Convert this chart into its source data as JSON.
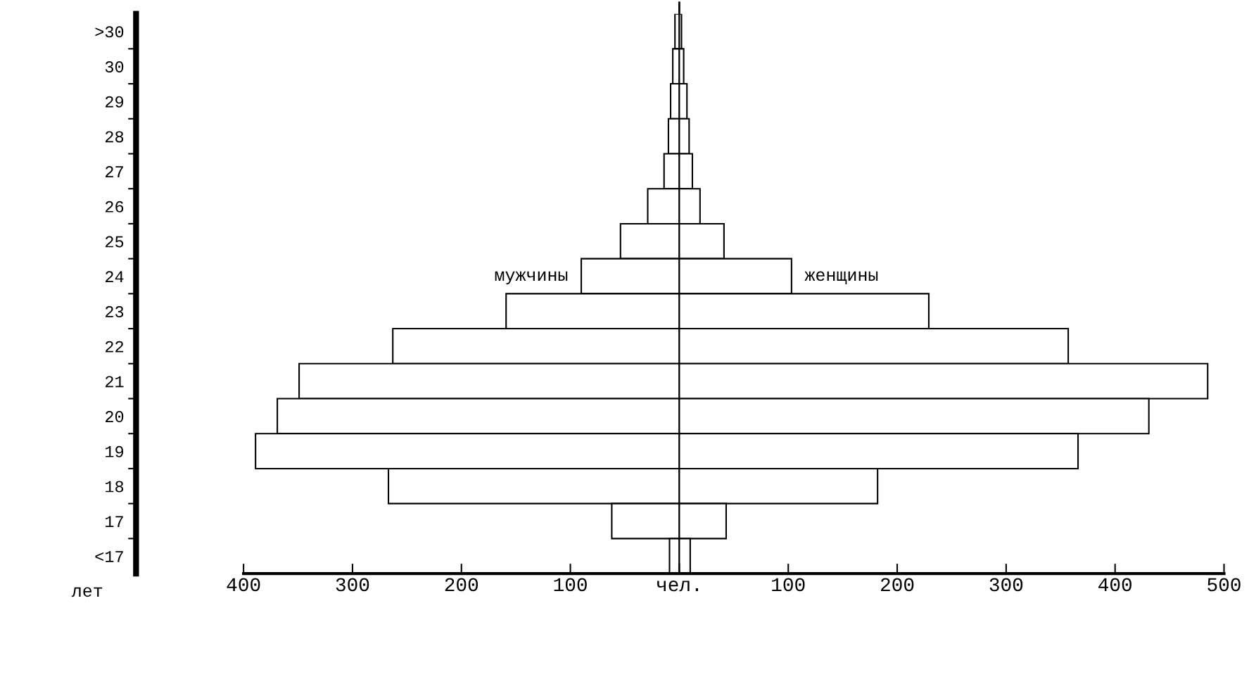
{
  "chart_data": {
    "type": "bar",
    "orientation": "horizontal",
    "stacked": true,
    "categories": [
      ">30",
      "30",
      "29",
      "28",
      "27",
      "26",
      "25",
      "24",
      "23",
      "22",
      "21",
      "20",
      "19",
      "18",
      "17",
      "<17"
    ],
    "series": [
      {
        "name": "мужчины",
        "color": "#ffffff",
        "values": [
          -4,
          -6,
          -8,
          -10,
          -14,
          -29,
          -54,
          -90,
          -159,
          -263,
          -349,
          -369,
          -389,
          -267,
          -62,
          -9
        ]
      },
      {
        "name": "женщины",
        "color": "#ffffff",
        "values": [
          2,
          4,
          7,
          9,
          12,
          19,
          41,
          103,
          229,
          357,
          485,
          431,
          366,
          182,
          43,
          10
        ]
      }
    ],
    "xlim": [
      -400,
      500
    ],
    "xticks": [
      {
        "value": -400,
        "label": "400"
      },
      {
        "value": -300,
        "label": "300"
      },
      {
        "value": -200,
        "label": "200"
      },
      {
        "value": -100,
        "label": "100"
      },
      {
        "value": 0,
        "label": "чел."
      },
      100,
      200,
      300,
      400,
      500
    ],
    "ref_lines": [
      {
        "axis": "x",
        "value": 0,
        "color": "#000000"
      }
    ],
    "annotations": [
      "лет"
    ],
    "grid": false,
    "legend": false
  }
}
